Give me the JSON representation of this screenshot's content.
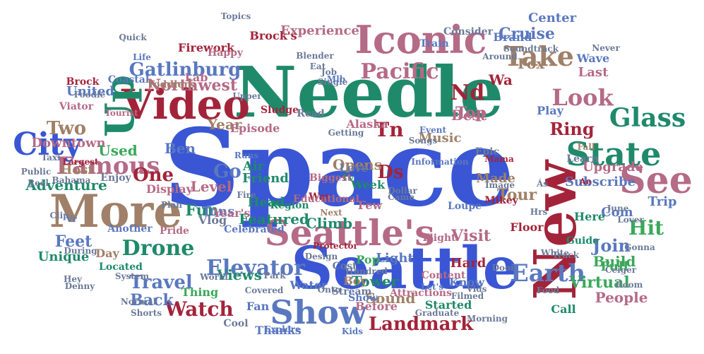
{
  "colors": {
    "blue": "#3a56d4",
    "teal": "#1f8a6a",
    "rose": "#b56a86",
    "taupe": "#a08068",
    "crimson": "#a3243a",
    "green": "#3aa85a",
    "steel": "#5a78c0",
    "slate": "#6b7a99"
  },
  "words": [
    {
      "text": "Space",
      "color": "blue"
    },
    {
      "text": "Needle",
      "color": "teal"
    },
    {
      "text": "Seattle",
      "color": "blue"
    },
    {
      "text": "Seattle's",
      "color": "rose"
    },
    {
      "text": "New",
      "color": "crimson"
    },
    {
      "text": "Iconic",
      "color": "rose"
    },
    {
      "text": "More",
      "color": "taupe"
    },
    {
      "text": "See",
      "color": "rose"
    },
    {
      "text": "Video",
      "color": "crimson"
    },
    {
      "text": "City",
      "color": "blue"
    },
    {
      "text": "Up",
      "color": "teal"
    },
    {
      "text": "State",
      "color": "teal"
    },
    {
      "text": "Show",
      "color": "steel"
    },
    {
      "text": "Glass",
      "color": "teal"
    },
    {
      "text": "Earth",
      "color": "steel"
    },
    {
      "text": "Take",
      "color": "taupe"
    },
    {
      "text": "Famous",
      "color": "rose"
    },
    {
      "text": "Landmark",
      "color": "crimson"
    },
    {
      "text": "Drone",
      "color": "teal"
    },
    {
      "text": "Travel",
      "color": "steel"
    },
    {
      "text": "Watch",
      "color": "crimson"
    },
    {
      "text": "Elevator",
      "color": "steel"
    },
    {
      "text": "Pacific",
      "color": "rose"
    },
    {
      "text": "Look",
      "color": "rose"
    },
    {
      "text": "Hit",
      "color": "green"
    },
    {
      "text": "Nd",
      "color": "crimson"
    },
    {
      "text": "Gatlinburg",
      "color": "steel"
    },
    {
      "text": "Northwest",
      "color": "rose"
    },
    {
      "text": "Cruise",
      "color": "steel"
    },
    {
      "text": "Center",
      "color": "steel"
    },
    {
      "text": "Go",
      "color": "steel"
    },
    {
      "text": "One",
      "color": "crimson"
    },
    {
      "text": "Ben",
      "color": "steel"
    },
    {
      "text": "Tn",
      "color": "crimson"
    },
    {
      "text": "Ds",
      "color": "crimson"
    },
    {
      "text": "Tour",
      "color": "taupe"
    },
    {
      "text": "Visit",
      "color": "rose"
    },
    {
      "text": "Back",
      "color": "steel"
    },
    {
      "text": "Fun",
      "color": "teal"
    },
    {
      "text": "Feet",
      "color": "steel"
    },
    {
      "text": "Two",
      "color": "taupe"
    },
    {
      "text": "Year",
      "color": "taupe"
    },
    {
      "text": "United",
      "color": "steel"
    },
    {
      "text": "Downtown",
      "color": "rose"
    },
    {
      "text": "Ring",
      "color": "crimson"
    },
    {
      "text": "Top",
      "color": "rose"
    },
    {
      "text": "Virtual",
      "color": "green"
    },
    {
      "text": "Join",
      "color": "steel"
    },
    {
      "text": "Sound",
      "color": "taupe"
    },
    {
      "text": "Featured",
      "color": "teal"
    },
    {
      "text": "Used",
      "color": "green"
    },
    {
      "text": "Climb",
      "color": "teal"
    },
    {
      "text": "Experience",
      "color": "rose"
    },
    {
      "text": "Brock's",
      "color": "crimson"
    },
    {
      "text": "Firework",
      "color": "crimson"
    },
    {
      "text": "Alaska",
      "color": "rose"
    },
    {
      "text": "Level",
      "color": "rose"
    },
    {
      "text": "Vlog",
      "color": "slate"
    },
    {
      "text": "Episode",
      "color": "rose"
    },
    {
      "text": "Music",
      "color": "taupe"
    },
    {
      "text": "Week",
      "color": "teal"
    },
    {
      "text": "Made",
      "color": "taupe"
    },
    {
      "text": "Tower",
      "color": "teal"
    },
    {
      "text": "Light",
      "color": "steel"
    },
    {
      "text": "Views",
      "color": "teal"
    },
    {
      "text": "Build",
      "color": "green"
    },
    {
      "text": "Full",
      "color": "green"
    },
    {
      "text": "Before",
      "color": "rose"
    },
    {
      "text": "Thanks",
      "color": "steel"
    },
    {
      "text": "Fox",
      "color": "taupe"
    },
    {
      "text": "Last",
      "color": "rose"
    },
    {
      "text": "Wave",
      "color": "steel"
    },
    {
      "text": "Upgrade",
      "color": "rose"
    },
    {
      "text": "Subscribe",
      "color": "steel"
    },
    {
      "text": "Floor",
      "color": "crimson"
    },
    {
      "text": "Com",
      "color": "steel"
    },
    {
      "text": "Trip",
      "color": "steel"
    },
    {
      "text": "Adventure",
      "color": "teal"
    },
    {
      "text": "Host",
      "color": "taupe"
    },
    {
      "text": "Day",
      "color": "taupe"
    },
    {
      "text": "Air",
      "color": "teal"
    },
    {
      "text": "Friend",
      "color": "teal"
    },
    {
      "text": "Head",
      "color": "teal"
    },
    {
      "text": "Tons",
      "color": "steel"
    },
    {
      "text": "Opens",
      "color": "taupe"
    },
    {
      "text": "Best",
      "color": "rose"
    },
    {
      "text": "Hard",
      "color": "crimson"
    },
    {
      "text": "People",
      "color": "rose"
    },
    {
      "text": "Call",
      "color": "teal"
    },
    {
      "text": "Unique",
      "color": "teal"
    },
    {
      "text": "Year's",
      "color": "rose"
    },
    {
      "text": "Pop",
      "color": "green"
    },
    {
      "text": "Boy",
      "color": "taupe"
    },
    {
      "text": "Fan",
      "color": "steel"
    },
    {
      "text": "Cool",
      "color": "slate"
    },
    {
      "text": "Thing",
      "color": "green"
    },
    {
      "text": "Water",
      "color": "steel"
    },
    {
      "text": "Few",
      "color": "rose"
    },
    {
      "text": "Here",
      "color": "teal"
    },
    {
      "text": "Guide",
      "color": "teal"
    },
    {
      "text": "Started",
      "color": "teal"
    },
    {
      "text": "Display",
      "color": "rose"
    },
    {
      "text": "Celebrated",
      "color": "steel"
    },
    {
      "text": "Lab",
      "color": "rose"
    },
    {
      "text": "Happy",
      "color": "rose"
    },
    {
      "text": "Wa",
      "color": "crimson"
    },
    {
      "text": "Brand",
      "color": "steel"
    },
    {
      "text": "Consider",
      "color": "slate"
    },
    {
      "text": "Love",
      "color": "slate"
    },
    {
      "text": "Tv",
      "color": "teal"
    },
    {
      "text": "Play",
      "color": "steel"
    },
    {
      "text": "Learn",
      "color": "slate"
    },
    {
      "text": "Stream",
      "color": "slate"
    },
    {
      "text": "Show",
      "color": "steel"
    },
    {
      "text": "Know",
      "color": "steel"
    },
    {
      "text": "Way",
      "color": "crimson"
    },
    {
      "text": "Educational",
      "color": "rose"
    },
    {
      "text": "Region",
      "color": "teal"
    },
    {
      "text": "Flight",
      "color": "rose"
    },
    {
      "text": "Pride",
      "color": "rose"
    },
    {
      "text": "Located",
      "color": "teal"
    },
    {
      "text": "Another",
      "color": "steel"
    },
    {
      "text": "Viator",
      "color": "rose"
    },
    {
      "text": "Coastal",
      "color": "steel"
    },
    {
      "text": "Brock",
      "color": "crimson"
    },
    {
      "text": "Toddlers",
      "color": "taupe"
    },
    {
      "text": "Mikey",
      "color": "crimson"
    },
    {
      "text": "Sludge",
      "color": "crimson"
    },
    {
      "text": "Read",
      "color": "slate"
    },
    {
      "text": "Enjoy",
      "color": "slate"
    },
    {
      "text": "Largest",
      "color": "crimson"
    },
    {
      "text": "Bahama",
      "color": "slate"
    },
    {
      "text": "Reel",
      "color": "slate"
    },
    {
      "text": "Taxi",
      "color": "slate"
    },
    {
      "text": "Cost",
      "color": "slate"
    },
    {
      "text": "Content",
      "color": "rose"
    },
    {
      "text": "Attractions",
      "color": "rose"
    },
    {
      "text": "Train",
      "color": "steel"
    },
    {
      "text": "Soundtrack",
      "color": "slate"
    },
    {
      "text": "Around",
      "color": "slate"
    },
    {
      "text": "Never",
      "color": "slate"
    },
    {
      "text": "Epic",
      "color": "slate"
    },
    {
      "text": "Mama",
      "color": "crimson"
    },
    {
      "text": "Fall",
      "color": "taupe"
    },
    {
      "text": "Songs",
      "color": "slate"
    },
    {
      "text": "Event",
      "color": "steel"
    },
    {
      "text": "Information",
      "color": "steel"
    },
    {
      "text": "Loupe",
      "color": "steel"
    },
    {
      "text": "Biggest",
      "color": "rose"
    },
    {
      "text": "Next",
      "color": "taupe"
    },
    {
      "text": "Protector",
      "color": "crimson"
    },
    {
      "text": "Let's",
      "color": "steel"
    },
    {
      "text": "Vids",
      "color": "slate"
    },
    {
      "text": "Morning",
      "color": "slate"
    },
    {
      "text": "Food",
      "color": "slate"
    },
    {
      "text": "White",
      "color": "slate"
    },
    {
      "text": "Track",
      "color": "slate"
    },
    {
      "text": "Quick",
      "color": "slate"
    },
    {
      "text": "Getting",
      "color": "slate"
    },
    {
      "text": "Job",
      "color": "slate"
    },
    {
      "text": "Runs",
      "color": "steel"
    },
    {
      "text": "Explore",
      "color": "steel"
    },
    {
      "text": "Kids",
      "color": "steel"
    },
    {
      "text": "World",
      "color": "slate"
    },
    {
      "text": "Park",
      "color": "slate"
    },
    {
      "text": "Onto",
      "color": "slate"
    },
    {
      "text": "Public",
      "color": "slate"
    },
    {
      "text": "During",
      "color": "slate"
    },
    {
      "text": "Hey",
      "color": "slate"
    },
    {
      "text": "Topics",
      "color": "slate"
    },
    {
      "text": "Single",
      "color": "slate"
    },
    {
      "text": "Upper",
      "color": "slate"
    },
    {
      "text": "Dollar",
      "color": "slate"
    },
    {
      "text": "Came",
      "color": "slate"
    },
    {
      "text": "Image",
      "color": "slate"
    },
    {
      "text": "Fire",
      "color": "slate"
    },
    {
      "text": "Blender",
      "color": "slate"
    },
    {
      "text": "Eat",
      "color": "slate"
    },
    {
      "text": "Mlb",
      "color": "steel"
    },
    {
      "text": "Life",
      "color": "steel"
    },
    {
      "text": "Tourist",
      "color": "rose"
    },
    {
      "text": "Denny",
      "color": "slate"
    },
    {
      "text": "Design",
      "color": "slate"
    },
    {
      "text": "Door",
      "color": "slate"
    },
    {
      "text": "June",
      "color": "slate"
    },
    {
      "text": "Lover",
      "color": "slate"
    },
    {
      "text": "Ceiger",
      "color": "slate"
    },
    {
      "text": "Gonna",
      "color": "slate"
    },
    {
      "text": "Room",
      "color": "slate"
    },
    {
      "text": "System",
      "color": "slate"
    },
    {
      "text": "Normal",
      "color": "slate"
    },
    {
      "text": "Shorts",
      "color": "slate"
    },
    {
      "text": "Graduate",
      "color": "slate"
    },
    {
      "text": "Covered",
      "color": "slate"
    },
    {
      "text": "Hundred",
      "color": "slate"
    },
    {
      "text": "Filmed",
      "color": "slate"
    },
    {
      "text": "Foodie",
      "color": "slate"
    },
    {
      "text": "Clip",
      "color": "slate"
    },
    {
      "text": "Plan",
      "color": "slate"
    },
    {
      "text": "Hrs",
      "color": "slate"
    },
    {
      "text": "Ás",
      "color": "slate"
    },
    {
      "text": "Ae",
      "color": "crimson"
    },
    {
      "text": "Vr",
      "color": "steel"
    },
    {
      "text": "Au",
      "color": "steel"
    },
    {
      "text": "Ai",
      "color": "crimson"
    },
    {
      "text": "Ást",
      "color": "slate"
    }
  ]
}
